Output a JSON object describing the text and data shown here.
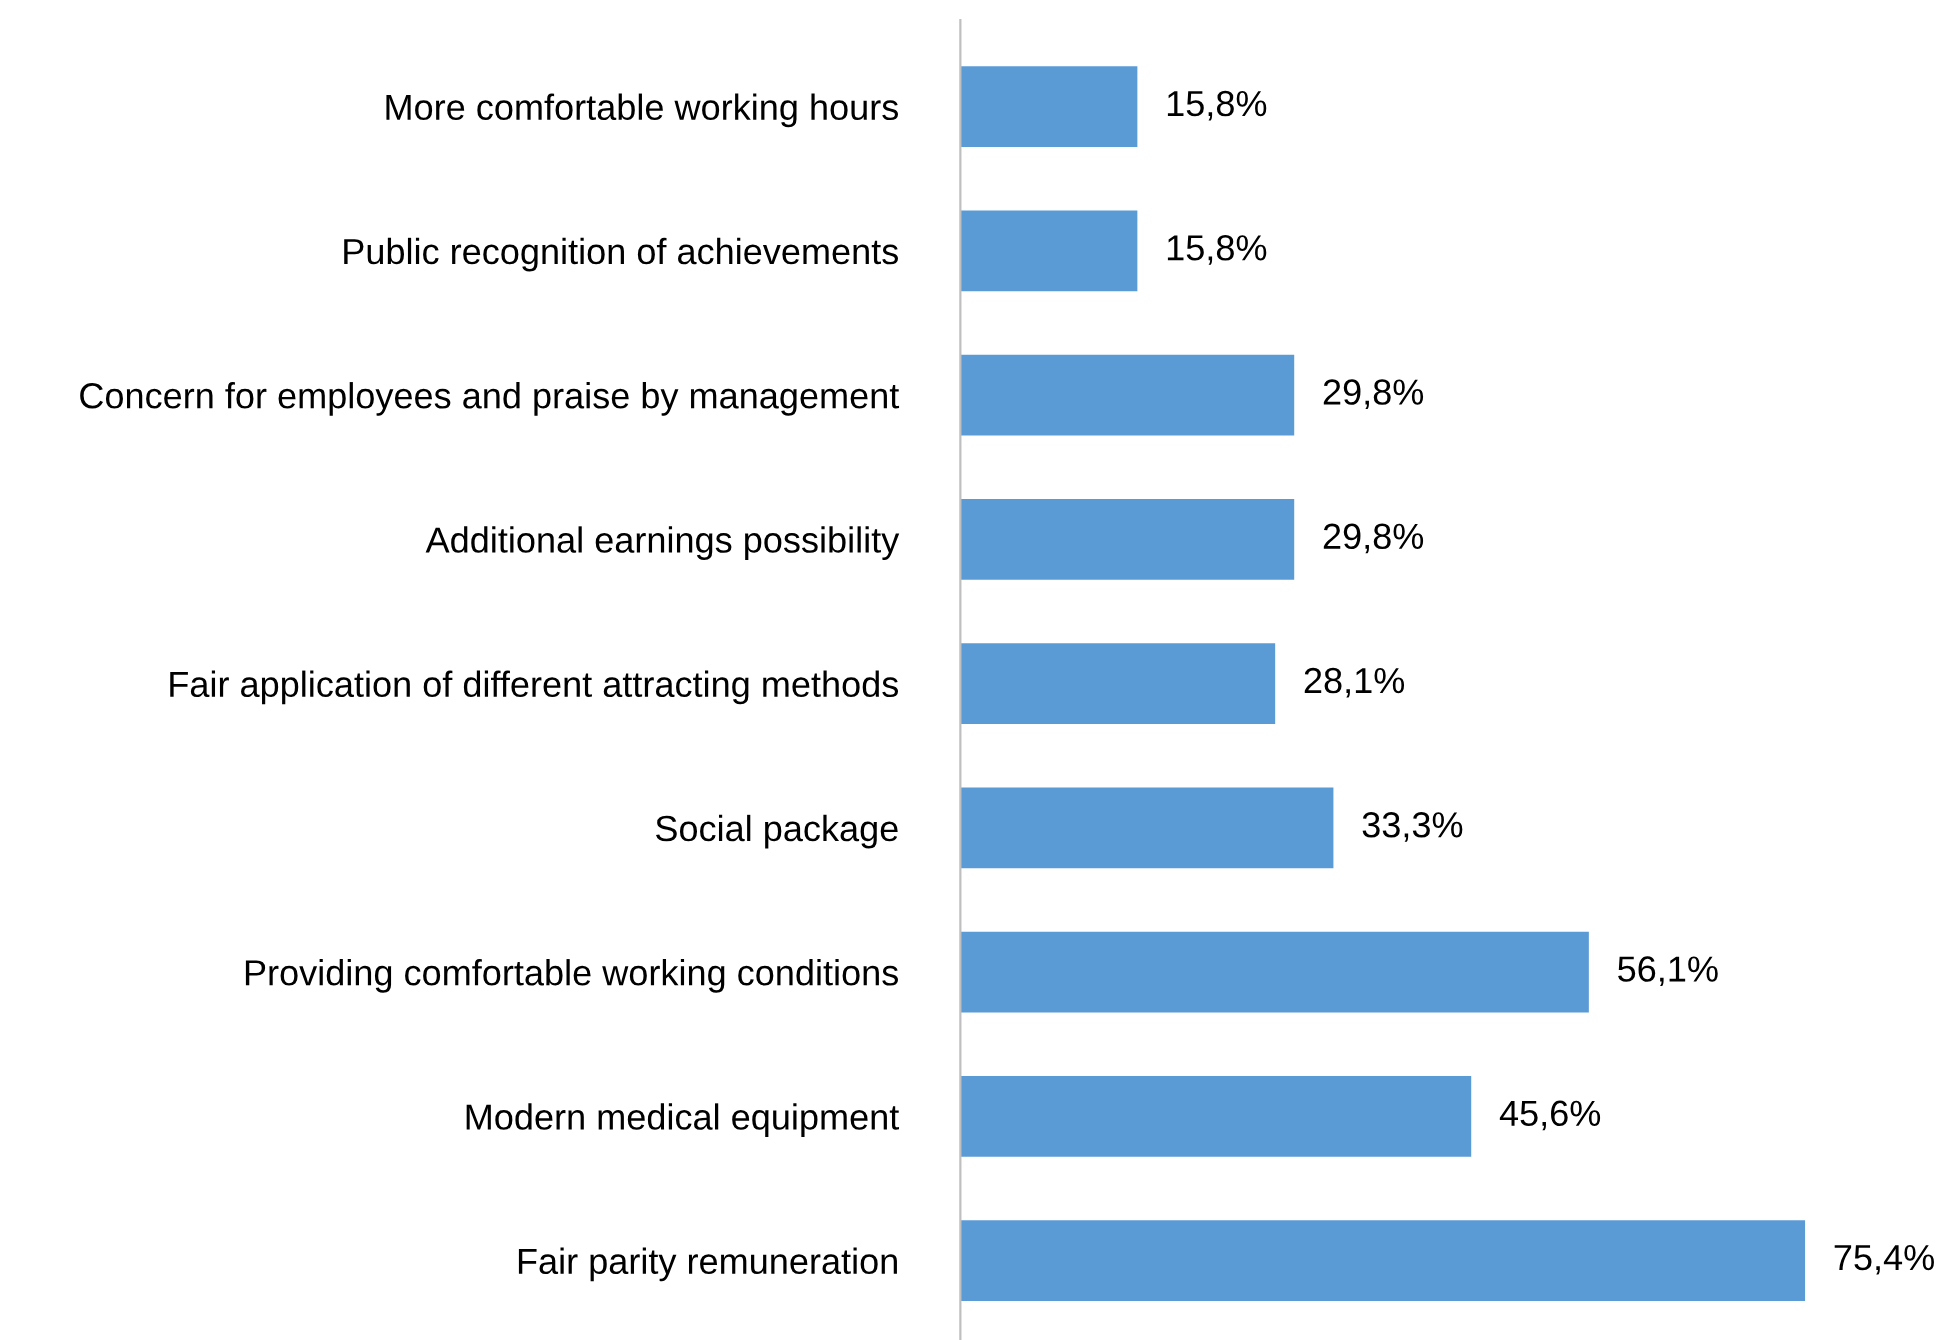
{
  "chart_data": {
    "type": "bar",
    "orientation": "horizontal",
    "categories": [
      "More comfortable working hours",
      "Public recognition of achievements",
      "Concern for employees and praise by management",
      "Additional earnings possibility",
      "Fair application of different attracting methods",
      "Social package",
      "Providing comfortable working conditions",
      "Modern medical equipment",
      "Fair parity remuneration"
    ],
    "values": [
      15.8,
      15.8,
      29.8,
      29.8,
      28.1,
      33.3,
      56.1,
      45.6,
      75.4
    ],
    "value_labels": [
      "15,8%",
      "15,8%",
      "29,8%",
      "29,8%",
      "28,1%",
      "33,3%",
      "56,1%",
      "45,6%",
      "75,4%"
    ],
    "color": "#5b9bd5",
    "grid": false,
    "legend": false
  }
}
